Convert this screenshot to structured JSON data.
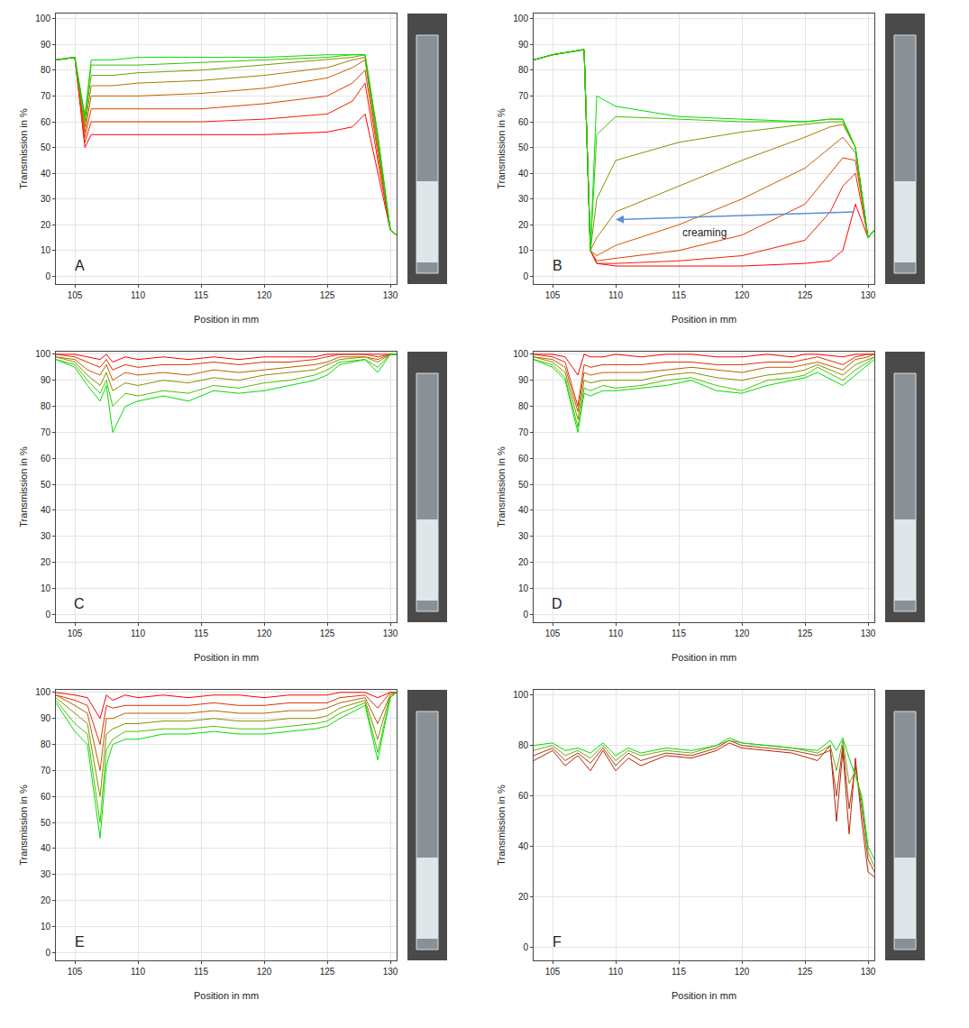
{
  "chart_data": [
    {
      "type": "line",
      "panel": "A",
      "x_label": "Position in mm",
      "y_label": "Transmission in %",
      "xlim": [
        103.5,
        130.5
      ],
      "xticks": [
        105,
        110,
        115,
        120,
        125,
        130
      ],
      "ylim": [
        -3,
        102
      ],
      "yticks": [
        0,
        10,
        20,
        30,
        40,
        50,
        60,
        70,
        80,
        90,
        100
      ],
      "grid": true,
      "x": [
        103.5,
        105,
        105.8,
        106.3,
        108,
        110,
        115,
        120,
        125,
        127,
        128,
        129,
        130,
        130.5
      ],
      "series": [
        {
          "color": "#ff0000",
          "values": [
            84,
            85,
            50,
            55,
            55,
            55,
            55,
            55,
            56,
            58,
            63,
            40,
            18,
            16
          ]
        },
        {
          "color": "#f02000",
          "values": [
            84,
            85,
            52,
            60,
            60,
            60,
            60,
            61,
            63,
            68,
            75,
            45,
            18,
            16
          ]
        },
        {
          "color": "#e04000",
          "values": [
            84,
            85,
            54,
            65,
            65,
            65,
            65,
            67,
            70,
            75,
            80,
            48,
            18,
            16
          ]
        },
        {
          "color": "#c86000",
          "values": [
            84,
            85,
            56,
            70,
            70,
            70,
            71,
            73,
            77,
            81,
            84,
            50,
            18,
            16
          ]
        },
        {
          "color": "#a08000",
          "values": [
            84,
            85,
            58,
            74,
            74,
            75,
            76,
            78,
            81,
            84,
            85,
            52,
            18,
            16
          ]
        },
        {
          "color": "#70a000",
          "values": [
            84,
            85,
            60,
            78,
            78,
            79,
            80,
            82,
            84,
            85,
            86,
            54,
            18,
            16
          ]
        },
        {
          "color": "#40c000",
          "values": [
            84,
            85,
            62,
            82,
            82,
            82,
            83,
            84,
            85,
            86,
            86,
            55,
            18,
            16
          ]
        },
        {
          "color": "#00e000",
          "values": [
            84,
            85,
            62,
            84,
            84,
            85,
            85,
            85,
            86,
            86,
            86,
            55,
            18,
            16
          ]
        }
      ]
    },
    {
      "type": "line",
      "panel": "B",
      "x_label": "Position in mm",
      "y_label": "Transmission in %",
      "xlim": [
        103.5,
        130.5
      ],
      "xticks": [
        105,
        110,
        115,
        120,
        125,
        130
      ],
      "ylim": [
        -3,
        102
      ],
      "yticks": [
        0,
        10,
        20,
        30,
        40,
        50,
        60,
        70,
        80,
        90,
        100
      ],
      "grid": true,
      "x": [
        103.5,
        105,
        107.5,
        108,
        108.5,
        110,
        115,
        120,
        125,
        127,
        128,
        129,
        130,
        130.5
      ],
      "series": [
        {
          "color": "#ff0000",
          "values": [
            84,
            86,
            88,
            10,
            5,
            4,
            4,
            4,
            5,
            6,
            10,
            28,
            15,
            18
          ]
        },
        {
          "color": "#f02000",
          "values": [
            84,
            86,
            88,
            10,
            5,
            5,
            6,
            8,
            14,
            25,
            35,
            40,
            15,
            18
          ]
        },
        {
          "color": "#e04000",
          "values": [
            84,
            86,
            88,
            10,
            6,
            7,
            10,
            16,
            28,
            40,
            46,
            45,
            15,
            18
          ]
        },
        {
          "color": "#c86000",
          "values": [
            84,
            86,
            88,
            10,
            8,
            12,
            20,
            30,
            42,
            50,
            54,
            48,
            15,
            18
          ]
        },
        {
          "color": "#a08000",
          "values": [
            84,
            86,
            88,
            10,
            15,
            25,
            35,
            45,
            54,
            58,
            59,
            50,
            15,
            18
          ]
        },
        {
          "color": "#70a000",
          "values": [
            84,
            86,
            88,
            10,
            30,
            45,
            52,
            56,
            59,
            60,
            60,
            50,
            15,
            18
          ]
        },
        {
          "color": "#40c000",
          "values": [
            84,
            86,
            88,
            10,
            55,
            62,
            61,
            60,
            60,
            61,
            61,
            50,
            15,
            18
          ]
        },
        {
          "color": "#00e000",
          "values": [
            84,
            86,
            88,
            10,
            70,
            66,
            62,
            61,
            60,
            61,
            61,
            50,
            15,
            18
          ]
        }
      ],
      "annotations": [
        {
          "text": "creaming",
          "x": 117,
          "y": 17,
          "arrow": {
            "x": [
              129,
              110
            ],
            "y": [
              25,
              22
            ]
          }
        }
      ]
    },
    {
      "type": "line",
      "panel": "C",
      "x_label": "Position in mm",
      "y_label": "Transmission in %",
      "xlim": [
        103.5,
        130.5
      ],
      "xticks": [
        105,
        110,
        115,
        120,
        125,
        130
      ],
      "ylim": [
        -3,
        101
      ],
      "yticks": [
        0,
        10,
        20,
        30,
        40,
        50,
        60,
        70,
        80,
        90,
        100
      ],
      "grid": true,
      "x": [
        103.5,
        105,
        106,
        107,
        107.5,
        108,
        109,
        110,
        112,
        114,
        116,
        118,
        120,
        122,
        124,
        125,
        126,
        128,
        129,
        130,
        130.5
      ],
      "series": [
        {
          "color": "#ff0000",
          "values": [
            100,
            100,
            99,
            98,
            100,
            97,
            99,
            98,
            99,
            98,
            99,
            98,
            99,
            99,
            99,
            100,
            100,
            100,
            100,
            100,
            100
          ]
        },
        {
          "color": "#e03000",
          "values": [
            100,
            99,
            97,
            95,
            98,
            94,
            96,
            95,
            96,
            96,
            97,
            96,
            97,
            97,
            98,
            99,
            100,
            100,
            99,
            100,
            100
          ]
        },
        {
          "color": "#b86000",
          "values": [
            99,
            98,
            94,
            92,
            96,
            90,
            93,
            92,
            93,
            92,
            94,
            93,
            94,
            95,
            96,
            97,
            99,
            99,
            98,
            100,
            100
          ]
        },
        {
          "color": "#889000",
          "values": [
            99,
            97,
            92,
            88,
            93,
            86,
            89,
            88,
            90,
            89,
            91,
            90,
            92,
            93,
            94,
            96,
            98,
            99,
            97,
            100,
            100
          ]
        },
        {
          "color": "#50c000",
          "values": [
            98,
            96,
            90,
            85,
            90,
            80,
            85,
            84,
            86,
            85,
            88,
            87,
            89,
            90,
            92,
            94,
            97,
            98,
            95,
            100,
            100
          ]
        },
        {
          "color": "#00e000",
          "values": [
            98,
            95,
            88,
            82,
            88,
            70,
            80,
            82,
            84,
            82,
            86,
            85,
            86,
            88,
            90,
            92,
            96,
            98,
            93,
            100,
            100
          ]
        }
      ]
    },
    {
      "type": "line",
      "panel": "D",
      "x_label": "Position in mm",
      "y_label": "Transmission in %",
      "xlim": [
        103.5,
        130.5
      ],
      "xticks": [
        105,
        110,
        115,
        120,
        125,
        130
      ],
      "ylim": [
        -3,
        101
      ],
      "yticks": [
        0,
        10,
        20,
        30,
        40,
        50,
        60,
        70,
        80,
        90,
        100
      ],
      "grid": true,
      "x": [
        103.5,
        105,
        106,
        107,
        107.5,
        108,
        109,
        110,
        112,
        114,
        116,
        118,
        120,
        122,
        124,
        125,
        126,
        128,
        129,
        130,
        130.5
      ],
      "series": [
        {
          "color": "#ff0000",
          "values": [
            100,
            100,
            99,
            92,
            100,
            99,
            99,
            100,
            99,
            100,
            100,
            99,
            99,
            100,
            99,
            100,
            100,
            99,
            100,
            100,
            100
          ]
        },
        {
          "color": "#e03000",
          "values": [
            100,
            99,
            97,
            80,
            96,
            95,
            96,
            96,
            96,
            97,
            97,
            96,
            96,
            97,
            97,
            98,
            99,
            96,
            99,
            100,
            100
          ]
        },
        {
          "color": "#b86000",
          "values": [
            99,
            98,
            95,
            78,
            93,
            92,
            93,
            93,
            93,
            94,
            95,
            94,
            93,
            95,
            95,
            96,
            97,
            94,
            98,
            99,
            100
          ]
        },
        {
          "color": "#889000",
          "values": [
            99,
            97,
            93,
            75,
            90,
            89,
            90,
            90,
            90,
            92,
            93,
            91,
            90,
            92,
            93,
            94,
            96,
            92,
            96,
            98,
            99
          ]
        },
        {
          "color": "#50c000",
          "values": [
            98,
            96,
            91,
            72,
            87,
            86,
            88,
            87,
            88,
            90,
            91,
            88,
            86,
            90,
            91,
            92,
            95,
            90,
            94,
            97,
            99
          ]
        },
        {
          "color": "#00e000",
          "values": [
            98,
            95,
            90,
            70,
            85,
            84,
            86,
            86,
            87,
            88,
            90,
            86,
            85,
            88,
            90,
            91,
            93,
            88,
            92,
            96,
            98
          ]
        }
      ]
    },
    {
      "type": "line",
      "panel": "E",
      "x_label": "Position in mm",
      "y_label": "Transmission in %",
      "xlim": [
        103.5,
        130.5
      ],
      "xticks": [
        105,
        110,
        115,
        120,
        125,
        130
      ],
      "ylim": [
        -3,
        101
      ],
      "yticks": [
        0,
        10,
        20,
        30,
        40,
        50,
        60,
        70,
        80,
        90,
        100
      ],
      "grid": true,
      "x": [
        103.5,
        105,
        106,
        107,
        107.5,
        108,
        109,
        110,
        112,
        114,
        116,
        118,
        120,
        122,
        124,
        125,
        126,
        128,
        129,
        130,
        130.5
      ],
      "series": [
        {
          "color": "#ff0000",
          "values": [
            100,
            99,
            98,
            90,
            99,
            97,
            99,
            98,
            99,
            98,
            99,
            99,
            98,
            99,
            99,
            99,
            100,
            100,
            98,
            100,
            100
          ]
        },
        {
          "color": "#e03000",
          "values": [
            99,
            97,
            95,
            80,
            95,
            94,
            95,
            95,
            95,
            95,
            96,
            95,
            95,
            96,
            96,
            96,
            98,
            99,
            94,
            100,
            100
          ]
        },
        {
          "color": "#b86000",
          "values": [
            99,
            95,
            92,
            70,
            90,
            90,
            92,
            92,
            92,
            92,
            93,
            92,
            92,
            93,
            93,
            94,
            96,
            98,
            88,
            99,
            100
          ]
        },
        {
          "color": "#889000",
          "values": [
            98,
            92,
            88,
            60,
            84,
            86,
            88,
            88,
            89,
            89,
            90,
            89,
            89,
            90,
            90,
            91,
            94,
            97,
            82,
            99,
            100
          ]
        },
        {
          "color": "#50c000",
          "values": [
            97,
            88,
            84,
            50,
            78,
            82,
            85,
            85,
            86,
            86,
            87,
            86,
            86,
            87,
            88,
            89,
            92,
            96,
            77,
            98,
            100
          ]
        },
        {
          "color": "#00e000",
          "values": [
            96,
            85,
            80,
            44,
            72,
            80,
            82,
            82,
            84,
            84,
            85,
            84,
            84,
            85,
            86,
            87,
            90,
            95,
            74,
            98,
            100
          ]
        }
      ]
    },
    {
      "type": "line",
      "panel": "F",
      "x_label": "Position in mm",
      "y_label": "Transmission in %",
      "xlim": [
        103.5,
        130.5
      ],
      "xticks": [
        105,
        110,
        115,
        120,
        125,
        130
      ],
      "ylim": [
        -5,
        102
      ],
      "yticks": [
        0,
        20,
        40,
        60,
        80,
        100
      ],
      "grid": true,
      "x": [
        103.5,
        105,
        106,
        107,
        108,
        109,
        110,
        111,
        112,
        114,
        116,
        118,
        119,
        120,
        122,
        124,
        126,
        127,
        127.5,
        128,
        128.5,
        129,
        129.5,
        130,
        130.5
      ],
      "series": [
        {
          "color": "#c02000",
          "values": [
            74,
            78,
            72,
            76,
            70,
            78,
            70,
            75,
            72,
            76,
            75,
            78,
            81,
            79,
            78,
            77,
            74,
            80,
            50,
            78,
            45,
            75,
            50,
            30,
            28
          ]
        },
        {
          "color": "#a04010",
          "values": [
            76,
            79,
            74,
            77,
            73,
            79,
            72,
            77,
            74,
            77,
            76,
            79,
            82,
            80,
            79,
            78,
            76,
            78,
            60,
            80,
            55,
            72,
            55,
            35,
            30
          ]
        },
        {
          "color": "#80a020",
          "values": [
            78,
            80,
            76,
            78,
            75,
            80,
            74,
            78,
            76,
            78,
            77,
            80,
            82,
            81,
            80,
            79,
            77,
            80,
            70,
            82,
            65,
            70,
            58,
            38,
            32
          ]
        },
        {
          "color": "#00e000",
          "values": [
            80,
            81,
            78,
            79,
            77,
            81,
            76,
            79,
            77,
            79,
            78,
            80,
            83,
            81,
            80,
            79,
            78,
            82,
            78,
            83,
            75,
            68,
            60,
            40,
            35
          ]
        }
      ]
    }
  ]
}
